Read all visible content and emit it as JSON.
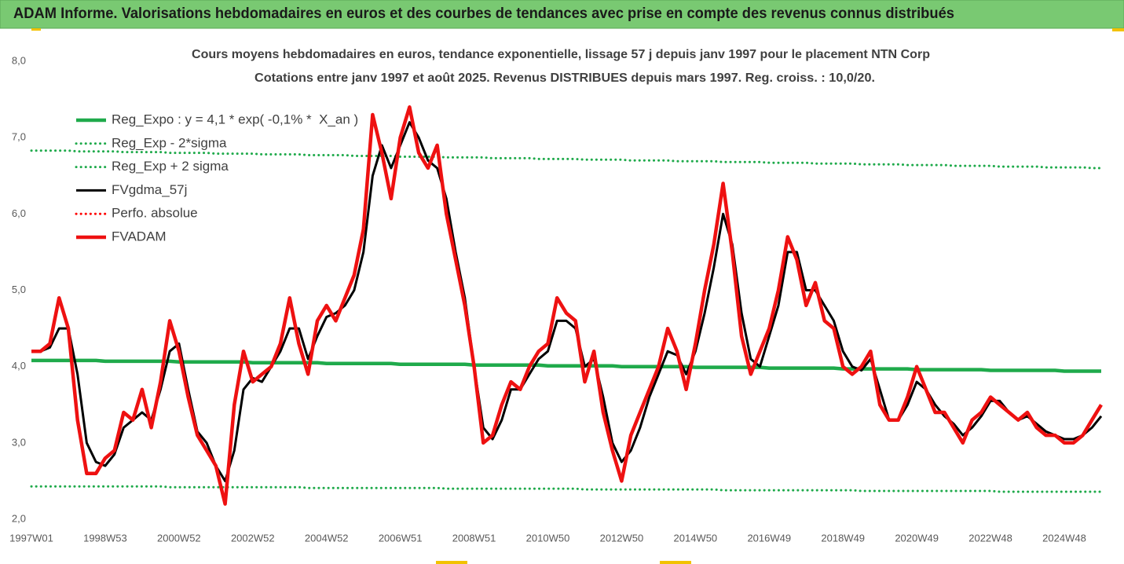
{
  "header": {
    "title": "ADAM Informe. Valorisations hebdomadaires en euros et des courbes de tendances avec prise en compte des revenus connus distribués"
  },
  "chart_data": {
    "type": "line",
    "title": [
      "Cours moyens hebdomadaires en euros, tendance exponentielle, lissage 57 j depuis janv 1997 pour le placement NTN Corp",
      "Cotations entre janv 1997 et août 2025. Revenus DISTRIBUES depuis mars 1997. Reg. croiss. : 10,0/20."
    ],
    "x": [
      "1997W01",
      null,
      null,
      null,
      null,
      null,
      null,
      null,
      "1998W53",
      null,
      null,
      null,
      null,
      null,
      null,
      null,
      "2000W52",
      null,
      null,
      null,
      null,
      null,
      null,
      null,
      "2002W52",
      null,
      null,
      null,
      null,
      null,
      null,
      null,
      "2004W52",
      null,
      null,
      null,
      null,
      null,
      null,
      null,
      "2006W51",
      null,
      null,
      null,
      null,
      null,
      null,
      null,
      "2008W51",
      null,
      null,
      null,
      null,
      null,
      null,
      null,
      "2010W50",
      null,
      null,
      null,
      null,
      null,
      null,
      null,
      "2012W50",
      null,
      null,
      null,
      null,
      null,
      null,
      null,
      "2014W50",
      null,
      null,
      null,
      null,
      null,
      null,
      null,
      "2016W49",
      null,
      null,
      null,
      null,
      null,
      null,
      null,
      "2018W49",
      null,
      null,
      null,
      null,
      null,
      null,
      null,
      "2020W49",
      null,
      null,
      null,
      null,
      null,
      null,
      null,
      "2022W48",
      null,
      null,
      null,
      null,
      null,
      null,
      null,
      "2024W48",
      null,
      null,
      null,
      null
    ],
    "ylim": [
      2,
      8
    ],
    "yticks": [
      {
        "value": 2,
        "label": "2,0"
      },
      {
        "value": 3,
        "label": "3,0"
      },
      {
        "value": 4,
        "label": "4,0"
      },
      {
        "value": 5,
        "label": "5,0"
      },
      {
        "value": 6,
        "label": "6,0"
      },
      {
        "value": 7,
        "label": "7,0"
      },
      {
        "value": 8,
        "label": "8,0"
      }
    ],
    "legend": "upper left",
    "series": [
      {
        "name": "Reg_Expo : y = 4,1 * exp( -0,1% *  X_an )",
        "color": "#1faa4b",
        "style": "solid",
        "values": [
          4.08,
          4.08,
          4.08,
          4.08,
          4.08,
          4.08,
          4.08,
          4.08,
          4.07,
          4.07,
          4.07,
          4.07,
          4.07,
          4.07,
          4.07,
          4.07,
          4.06,
          4.06,
          4.06,
          4.06,
          4.06,
          4.06,
          4.06,
          4.06,
          4.05,
          4.05,
          4.05,
          4.05,
          4.05,
          4.05,
          4.05,
          4.05,
          4.04,
          4.04,
          4.04,
          4.04,
          4.04,
          4.04,
          4.04,
          4.04,
          4.03,
          4.03,
          4.03,
          4.03,
          4.03,
          4.03,
          4.03,
          4.03,
          4.02,
          4.02,
          4.02,
          4.02,
          4.02,
          4.02,
          4.02,
          4.02,
          4.01,
          4.01,
          4.01,
          4.01,
          4.01,
          4.01,
          4.01,
          4.01,
          4.0,
          4.0,
          4.0,
          4.0,
          4.0,
          4.0,
          4.0,
          4.0,
          3.99,
          3.99,
          3.99,
          3.99,
          3.99,
          3.99,
          3.99,
          3.99,
          3.98,
          3.98,
          3.98,
          3.98,
          3.98,
          3.98,
          3.98,
          3.98,
          3.97,
          3.97,
          3.97,
          3.97,
          3.97,
          3.97,
          3.97,
          3.97,
          3.96,
          3.96,
          3.96,
          3.96,
          3.96,
          3.96,
          3.96,
          3.96,
          3.95,
          3.95,
          3.95,
          3.95,
          3.95,
          3.95,
          3.95,
          3.95,
          3.94,
          3.94,
          3.94,
          3.94,
          3.94
        ]
      },
      {
        "name": "Reg_Exp - 2*sigma",
        "color": "#1faa4b",
        "style": "dotted",
        "values": [
          2.43,
          2.43,
          2.43,
          2.43,
          2.43,
          2.43,
          2.43,
          2.43,
          2.43,
          2.43,
          2.43,
          2.43,
          2.43,
          2.43,
          2.43,
          2.42,
          2.42,
          2.42,
          2.42,
          2.42,
          2.42,
          2.42,
          2.42,
          2.42,
          2.42,
          2.42,
          2.42,
          2.42,
          2.42,
          2.42,
          2.41,
          2.41,
          2.41,
          2.41,
          2.41,
          2.41,
          2.41,
          2.41,
          2.41,
          2.41,
          2.41,
          2.41,
          2.41,
          2.41,
          2.41,
          2.4,
          2.4,
          2.4,
          2.4,
          2.4,
          2.4,
          2.4,
          2.4,
          2.4,
          2.4,
          2.4,
          2.4,
          2.4,
          2.4,
          2.4,
          2.39,
          2.39,
          2.39,
          2.39,
          2.39,
          2.39,
          2.39,
          2.39,
          2.39,
          2.39,
          2.39,
          2.39,
          2.39,
          2.39,
          2.39,
          2.38,
          2.38,
          2.38,
          2.38,
          2.38,
          2.38,
          2.38,
          2.38,
          2.38,
          2.38,
          2.38,
          2.38,
          2.38,
          2.38,
          2.38,
          2.37,
          2.37,
          2.37,
          2.37,
          2.37,
          2.37,
          2.37,
          2.37,
          2.37,
          2.37,
          2.37,
          2.37,
          2.37,
          2.37,
          2.37,
          2.36,
          2.36,
          2.36,
          2.36,
          2.36,
          2.36,
          2.36,
          2.36,
          2.36,
          2.36,
          2.36,
          2.36
        ]
      },
      {
        "name": "Reg_Exp + 2 sigma",
        "color": "#1faa4b",
        "style": "dotted",
        "values": [
          6.83,
          6.83,
          6.83,
          6.83,
          6.83,
          6.82,
          6.82,
          6.82,
          6.82,
          6.82,
          6.81,
          6.81,
          6.81,
          6.81,
          6.81,
          6.8,
          6.8,
          6.8,
          6.8,
          6.8,
          6.79,
          6.79,
          6.79,
          6.79,
          6.79,
          6.78,
          6.78,
          6.78,
          6.78,
          6.78,
          6.77,
          6.77,
          6.77,
          6.77,
          6.77,
          6.76,
          6.76,
          6.76,
          6.76,
          6.76,
          6.75,
          6.75,
          6.75,
          6.75,
          6.75,
          6.74,
          6.74,
          6.74,
          6.74,
          6.74,
          6.73,
          6.73,
          6.73,
          6.73,
          6.73,
          6.72,
          6.72,
          6.72,
          6.72,
          6.72,
          6.71,
          6.71,
          6.71,
          6.71,
          6.71,
          6.7,
          6.7,
          6.7,
          6.7,
          6.7,
          6.69,
          6.69,
          6.69,
          6.69,
          6.69,
          6.68,
          6.68,
          6.68,
          6.68,
          6.68,
          6.67,
          6.67,
          6.67,
          6.67,
          6.67,
          6.66,
          6.66,
          6.66,
          6.66,
          6.66,
          6.65,
          6.65,
          6.65,
          6.65,
          6.65,
          6.64,
          6.64,
          6.64,
          6.64,
          6.64,
          6.63,
          6.63,
          6.63,
          6.63,
          6.63,
          6.62,
          6.62,
          6.62,
          6.62,
          6.62,
          6.61,
          6.61,
          6.61,
          6.61,
          6.61,
          6.6,
          6.6
        ]
      },
      {
        "name": "FVgdma_57j",
        "color": "#000000",
        "style": "solid",
        "values": [
          4.2,
          4.2,
          4.25,
          4.5,
          4.5,
          3.9,
          3.0,
          2.75,
          2.7,
          2.85,
          3.2,
          3.3,
          3.4,
          3.3,
          3.7,
          4.2,
          4.3,
          3.7,
          3.15,
          3.0,
          2.7,
          2.5,
          2.9,
          3.7,
          3.85,
          3.8,
          4.0,
          4.2,
          4.5,
          4.5,
          4.1,
          4.4,
          4.65,
          4.7,
          4.8,
          5.0,
          5.5,
          6.5,
          6.9,
          6.6,
          6.9,
          7.2,
          7.0,
          6.7,
          6.6,
          6.2,
          5.5,
          4.9,
          4.0,
          3.2,
          3.05,
          3.3,
          3.7,
          3.7,
          3.9,
          4.1,
          4.2,
          4.6,
          4.6,
          4.5,
          4.0,
          4.1,
          3.6,
          3.0,
          2.75,
          2.9,
          3.2,
          3.6,
          3.9,
          4.2,
          4.15,
          3.9,
          4.2,
          4.7,
          5.3,
          6.0,
          5.6,
          4.7,
          4.1,
          4.0,
          4.4,
          4.8,
          5.5,
          5.5,
          5.0,
          5.0,
          4.8,
          4.6,
          4.2,
          4.0,
          3.95,
          4.1,
          3.7,
          3.3,
          3.3,
          3.5,
          3.8,
          3.7,
          3.5,
          3.35,
          3.25,
          3.1,
          3.2,
          3.35,
          3.55,
          3.55,
          3.4,
          3.3,
          3.35,
          3.25,
          3.15,
          3.1,
          3.05,
          3.05,
          3.1,
          3.2,
          3.35
        ]
      },
      {
        "name": "Perfo. absolue",
        "color": "#ff0000",
        "style": "dotted",
        "values": [
          null,
          null,
          null,
          null,
          null,
          null,
          null,
          null,
          null,
          null,
          null,
          null,
          null,
          null,
          null,
          null,
          null,
          null,
          null,
          null,
          null,
          null,
          null,
          null,
          null,
          null,
          null,
          null,
          null,
          null,
          null,
          null,
          null,
          null,
          null,
          null,
          null,
          null,
          null,
          null,
          null,
          null,
          null,
          null,
          null,
          null,
          null,
          null,
          null,
          null,
          null,
          null,
          null,
          null,
          null,
          null,
          null,
          null,
          null,
          null,
          null,
          null,
          null,
          null,
          null,
          null,
          null,
          null,
          null,
          null,
          null,
          null,
          null,
          null,
          null,
          null,
          null,
          null,
          null,
          null,
          null,
          null,
          null,
          null,
          null,
          null,
          null,
          null,
          null,
          null,
          null,
          null,
          null,
          null,
          null,
          null,
          null,
          null,
          null,
          null,
          null,
          null,
          null,
          null,
          null,
          null,
          null,
          null,
          null,
          null,
          null,
          null,
          null,
          null,
          null,
          null,
          null
        ]
      },
      {
        "name": "FVADAM",
        "color": "#ee1111",
        "style": "solid",
        "values": [
          4.2,
          4.2,
          4.3,
          4.9,
          4.5,
          3.3,
          2.6,
          2.6,
          2.8,
          2.9,
          3.4,
          3.3,
          3.7,
          3.2,
          3.8,
          4.6,
          4.2,
          3.6,
          3.1,
          2.9,
          2.7,
          2.2,
          3.5,
          4.2,
          3.8,
          3.9,
          4.0,
          4.3,
          4.9,
          4.3,
          3.9,
          4.6,
          4.8,
          4.6,
          4.9,
          5.2,
          5.8,
          7.3,
          6.8,
          6.2,
          7.0,
          7.4,
          6.8,
          6.6,
          6.9,
          6.0,
          5.4,
          4.8,
          4.0,
          3.0,
          3.1,
          3.5,
          3.8,
          3.7,
          4.0,
          4.2,
          4.3,
          4.9,
          4.7,
          4.6,
          3.8,
          4.2,
          3.4,
          2.9,
          2.5,
          3.1,
          3.4,
          3.7,
          4.0,
          4.5,
          4.2,
          3.7,
          4.3,
          5.0,
          5.6,
          6.4,
          5.5,
          4.4,
          3.9,
          4.2,
          4.5,
          5.0,
          5.7,
          5.4,
          4.8,
          5.1,
          4.6,
          4.5,
          4.0,
          3.9,
          4.0,
          4.2,
          3.5,
          3.3,
          3.3,
          3.6,
          4.0,
          3.7,
          3.4,
          3.4,
          3.2,
          3.0,
          3.3,
          3.4,
          3.6,
          3.5,
          3.4,
          3.3,
          3.4,
          3.2,
          3.1,
          3.1,
          3.0,
          3.0,
          3.1,
          3.3,
          3.5
        ]
      }
    ]
  }
}
